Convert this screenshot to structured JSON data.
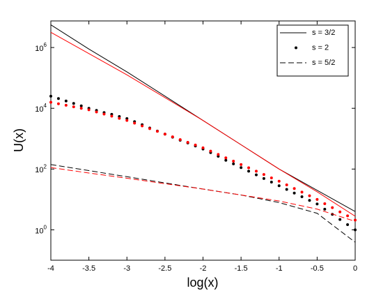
{
  "chart_data": {
    "type": "line",
    "xlabel": "log(x)",
    "ylabel": "U(x)",
    "xlim": [
      -4,
      0
    ],
    "ylim": [
      0.1,
      7500000
    ],
    "ylog": true,
    "grid": false,
    "legend": "top-right",
    "xticks": [
      -4,
      -3.5,
      -3,
      -2.5,
      -2,
      -1.5,
      -1,
      -0.5,
      0
    ],
    "yticks": [
      {
        "value": 1,
        "label": "10^0"
      },
      {
        "value": 100,
        "label": "10^2"
      },
      {
        "value": 10000,
        "label": "10^4"
      },
      {
        "value": 1000000,
        "label": "10^6"
      }
    ],
    "series": [
      {
        "name": "s = 3/2",
        "style": "solid",
        "color": "#000000",
        "x": [
          -4,
          -3.5,
          -3,
          -2.5,
          -2,
          -1.5,
          -1,
          -0.5,
          0
        ],
        "values": [
          5600000,
          891000,
          158000,
          25100,
          3980,
          631,
          100,
          20,
          4.0
        ]
      },
      {
        "name": "s = 2",
        "style": "dots",
        "color": "#000000",
        "x": [
          -4,
          -3.9,
          -3.8,
          -3.7,
          -3.6,
          -3.5,
          -3.4,
          -3.3,
          -3.2,
          -3.1,
          -3,
          -2.9,
          -2.8,
          -2.7,
          -2.6,
          -2.5,
          -2.4,
          -2.3,
          -2.2,
          -2.1,
          -2,
          -1.9,
          -1.8,
          -1.7,
          -1.6,
          -1.5,
          -1.4,
          -1.3,
          -1.2,
          -1.1,
          -1,
          -0.9,
          -0.8,
          -0.7,
          -0.6,
          -0.5,
          -0.4,
          -0.3,
          -0.2,
          -0.1,
          0
        ],
        "values": [
          25100,
          20900,
          17400,
          14500,
          12000,
          10000,
          8510,
          7240,
          6310,
          5370,
          4570,
          3630,
          2880,
          2240,
          1780,
          1410,
          1120,
          891,
          724,
          575,
          457,
          347,
          263,
          195,
          148,
          112,
          85.1,
          64.6,
          49.0,
          37.2,
          28.2,
          21.4,
          16.2,
          12.3,
          9.33,
          7.08,
          4.79,
          3.24,
          2.19,
          1.48,
          1
        ]
      },
      {
        "name": "s = 5/2",
        "style": "dashed",
        "color": "#000000",
        "x": [
          -4,
          -3.5,
          -3,
          -2.5,
          -2,
          -1.5,
          -1,
          -0.5,
          0
        ],
        "values": [
          141,
          89,
          56,
          35,
          22,
          14,
          7.9,
          3.5,
          0.39
        ]
      },
      {
        "style": "solid",
        "color": "#ff0000",
        "x": [
          -4,
          -3.5,
          -3,
          -2.5,
          -2,
          -1.5,
          -1,
          -0.5,
          0
        ],
        "values": [
          3160000,
          631000,
          126000,
          22400,
          3980,
          631,
          100,
          17.8,
          2.8
        ]
      },
      {
        "style": "dots",
        "color": "#ff0000",
        "x": [
          -4,
          -3.9,
          -3.8,
          -3.7,
          -3.6,
          -3.5,
          -3.4,
          -3.3,
          -3.2,
          -3.1,
          -3,
          -2.9,
          -2.8,
          -2.7,
          -2.6,
          -2.5,
          -2.4,
          -2.3,
          -2.2,
          -2.1,
          -2,
          -1.9,
          -1.8,
          -1.7,
          -1.6,
          -1.5,
          -1.4,
          -1.3,
          -1.2,
          -1.1,
          -1,
          -0.9,
          -0.8,
          -0.7,
          -0.6,
          -0.5,
          -0.4,
          -0.3,
          -0.2,
          -0.1,
          0
        ],
        "values": [
          15800,
          14100,
          12600,
          11200,
          10000,
          8910,
          7590,
          6460,
          5500,
          4680,
          3980,
          3240,
          2630,
          2140,
          1740,
          1410,
          1150,
          933,
          759,
          617,
          501,
          389,
          302,
          234,
          182,
          141,
          110,
          85.1,
          66.1,
          51.3,
          39.8,
          30.2,
          22.9,
          17.4,
          13.2,
          10,
          7.24,
          5.37,
          3.89,
          2.88,
          2.09
        ]
      },
      {
        "style": "dashed",
        "color": "#ff0000",
        "x": [
          -4,
          -3.5,
          -3,
          -2.5,
          -2,
          -1.5,
          -1,
          -0.5,
          0
        ],
        "values": [
          112,
          74,
          50,
          33,
          22,
          14,
          8.9,
          4.8,
          1.9
        ]
      }
    ]
  }
}
